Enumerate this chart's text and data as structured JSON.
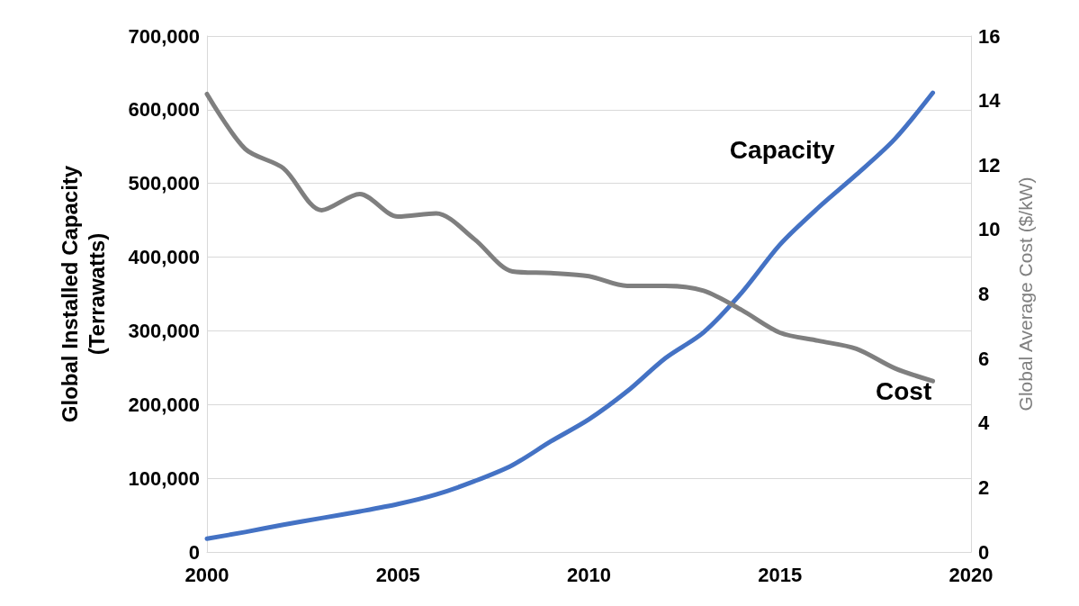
{
  "chart_data": {
    "type": "line",
    "ylabel": "Global Installed Capacity (Terrawatts)",
    "y2label": "Global Average Cost ($/kW)",
    "x": [
      2000,
      2001,
      2002,
      2003,
      2004,
      2005,
      2006,
      2007,
      2008,
      2009,
      2010,
      2011,
      2012,
      2013,
      2014,
      2015,
      2016,
      2017,
      2018,
      2019
    ],
    "series": [
      {
        "name": "Capacity",
        "color": "#4472c4",
        "values": [
          18000,
          27000,
          37000,
          46000,
          55000,
          65000,
          78000,
          96000,
          118000,
          150000,
          180000,
          218000,
          263000,
          298000,
          352000,
          417000,
          467000,
          512000,
          560000,
          623000
        ]
      },
      {
        "name": "Cost",
        "color": "#7f7f7f",
        "axis": "y2",
        "values": [
          14.2,
          12.5,
          11.9,
          10.6,
          11.1,
          10.4,
          10.5,
          9.7,
          8.7,
          8.65,
          8.55,
          8.25,
          8.25,
          8.1,
          7.5,
          6.8,
          6.55,
          6.3,
          5.7,
          5.3
        ]
      }
    ],
    "xlim": [
      2000,
      2020
    ],
    "xticks": [
      2000,
      2005,
      2010,
      2015,
      2020
    ],
    "ylim": [
      0,
      700000
    ],
    "yticks": [
      {
        "value": 0,
        "label": "0"
      },
      {
        "value": 100000,
        "label": "100,000"
      },
      {
        "value": 200000,
        "label": "200,000"
      },
      {
        "value": 300000,
        "label": "300,000"
      },
      {
        "value": 400000,
        "label": "400,000"
      },
      {
        "value": 500000,
        "label": "500,000"
      },
      {
        "value": 600000,
        "label": "600,000"
      },
      {
        "value": 700000,
        "label": "700,000"
      }
    ],
    "y2lim": [
      0,
      16
    ],
    "y2ticks": [
      0,
      2,
      4,
      6,
      8,
      10,
      12,
      14,
      16
    ],
    "grid": "y",
    "legend": false,
    "marker": "none",
    "line_style": "solid"
  }
}
